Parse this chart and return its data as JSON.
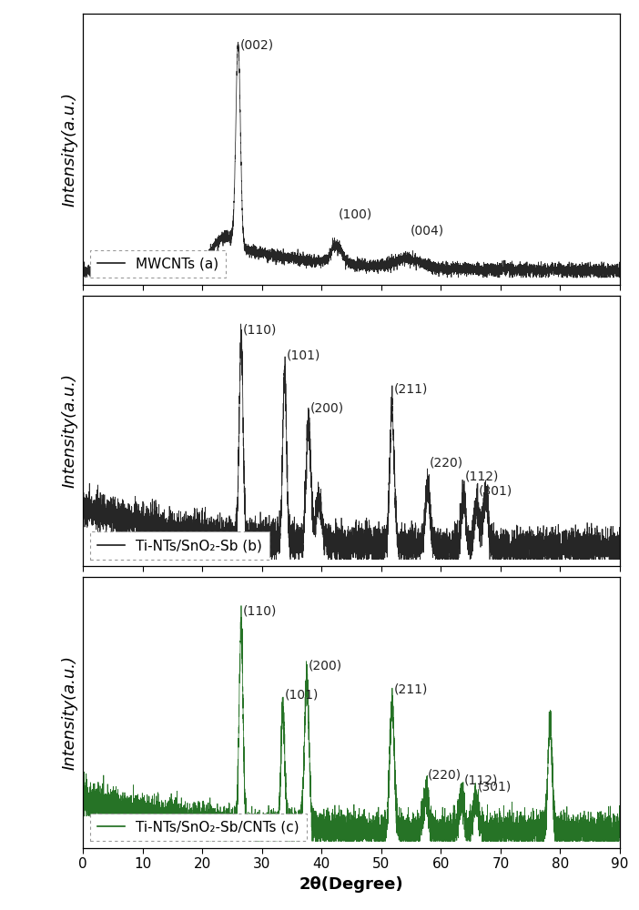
{
  "xlim": [
    0,
    90
  ],
  "xlabel": "2θ(Degree)",
  "ylabel": "Intensity(a.u.)",
  "line_color_a": "#1a1a1a",
  "line_color_b": "#1a1a1a",
  "line_color_c": "#1a6b1a",
  "legend_a": "MWCNTs (a)",
  "legend_b": "Ti-NTs/SnO₂-Sb (b)",
  "legend_c": "Ti-NTs/SnO₂-Sb/CNTs (c)",
  "background_color": "#ffffff",
  "tick_fontsize": 11,
  "label_fontsize": 13,
  "annotation_fontsize": 10,
  "legend_fontsize": 11,
  "annotations_a": [
    [
      "(002)",
      26.0,
      0.94
    ],
    [
      "(100)",
      42.5,
      0.23
    ],
    [
      "(004)",
      54.5,
      0.16
    ]
  ],
  "annotations_b": [
    [
      "(110)",
      26.5,
      0.93
    ],
    [
      "(101)",
      33.8,
      0.82
    ],
    [
      "(200)",
      37.8,
      0.6
    ],
    [
      "(211)",
      51.8,
      0.68
    ],
    [
      "(220)",
      57.8,
      0.37
    ],
    [
      "(112)",
      63.8,
      0.31
    ],
    [
      "(301)",
      66.0,
      0.25
    ]
  ],
  "annotations_c": [
    [
      "(110)",
      26.5,
      0.93
    ],
    [
      "(101)",
      33.5,
      0.58
    ],
    [
      "(200)",
      37.5,
      0.7
    ],
    [
      "(211)",
      51.8,
      0.6
    ],
    [
      "(220)",
      57.5,
      0.24
    ],
    [
      "(112)",
      63.5,
      0.22
    ],
    [
      "(301)",
      65.8,
      0.19
    ]
  ]
}
